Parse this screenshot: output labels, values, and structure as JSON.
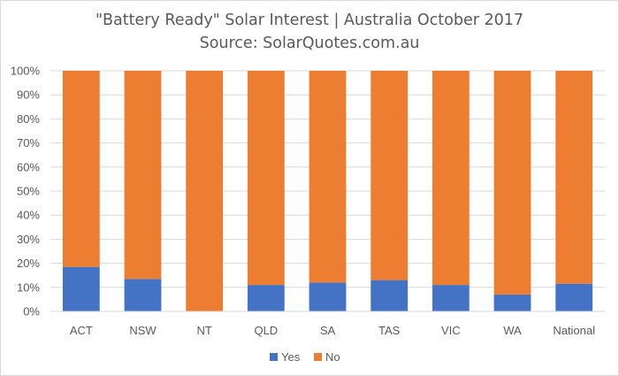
{
  "chart_data": {
    "type": "bar",
    "stacked": true,
    "title": "\"Battery Ready\" Solar Interest  |  Australia October 2017",
    "subtitle": "Source: SolarQuotes.com.au",
    "categories": [
      "ACT",
      "NSW",
      "NT",
      "QLD",
      "SA",
      "TAS",
      "VIC",
      "WA",
      "National"
    ],
    "series": [
      {
        "name": "Yes",
        "color": "#4472c4",
        "values": [
          18.5,
          13.5,
          0,
          11,
          12,
          13,
          11,
          7,
          11.5
        ]
      },
      {
        "name": "No",
        "color": "#ed7d31",
        "values": [
          81.5,
          86.5,
          100,
          89,
          88,
          87,
          89,
          93,
          88.5
        ]
      }
    ],
    "ylim": [
      0,
      100
    ],
    "yticks": [
      "0%",
      "10%",
      "20%",
      "30%",
      "40%",
      "50%",
      "60%",
      "70%",
      "80%",
      "90%",
      "100%"
    ],
    "grid": true,
    "legend_position": "bottom"
  }
}
